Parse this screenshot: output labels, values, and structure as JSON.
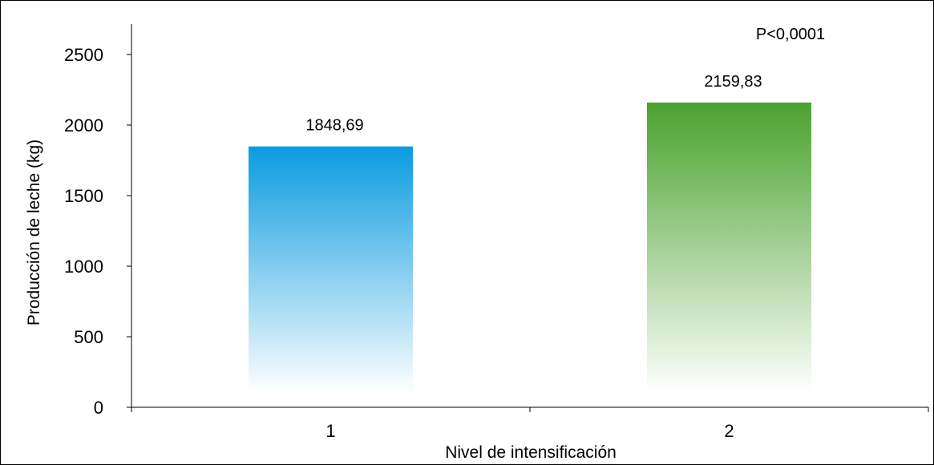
{
  "chart_data": {
    "type": "bar",
    "title": "",
    "xlabel": "Nivel de intensificación",
    "ylabel": "Producción de leche (kg)",
    "categories": [
      "1",
      "2"
    ],
    "values": [
      1848.69,
      2159.83
    ],
    "value_labels": [
      "1848,69",
      "2159,83"
    ],
    "ylim": [
      0,
      2500
    ],
    "yticks": [
      0,
      500,
      1000,
      1500,
      2000,
      2500
    ],
    "ytick_labels": [
      "0",
      "500",
      "1000",
      "1500",
      "2000",
      "2500"
    ],
    "annotation": "P<0,0001",
    "grid": false,
    "legend": "none",
    "bar_colors": [
      {
        "top": "#0a9be0",
        "bottom": "#ffffff"
      },
      {
        "top": "#4aa22e",
        "bottom": "#ffffff"
      }
    ],
    "axis_color": "#000000"
  }
}
